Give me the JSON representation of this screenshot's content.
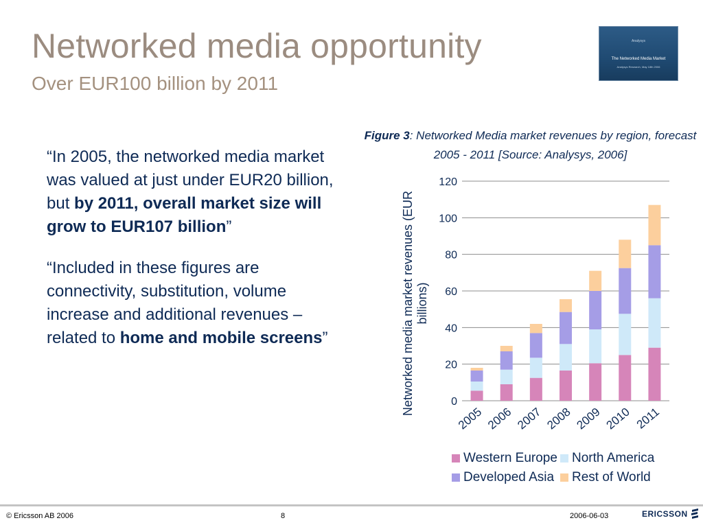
{
  "header": {
    "title": "Networked media opportunity",
    "subtitle": "Over EUR100 billion by 2011"
  },
  "thumbnail": {
    "logo": "Analysys",
    "title": "The Networked Media Market",
    "line": "Analysys Research, May 18th 2006"
  },
  "bullets": [
    {
      "pre": "“In 2005, the networked media market was valued at just under EUR20 billion, but ",
      "bold": "by 2011, overall market size will grow to EUR107 billion",
      "post": "”"
    },
    {
      "pre": "“Included in these figures are connectivity, substitution, volume increase and additional revenues – related to ",
      "bold": "home and mobile screens",
      "post": "”"
    }
  ],
  "caption": {
    "label": "Figure 3",
    "text": ": Networked Media market revenues by region, forecast 2005 - 2011 [Source: Analysys, 2006]"
  },
  "chart_data": {
    "type": "bar",
    "stacked": true,
    "categories": [
      "2005",
      "2006",
      "2007",
      "2008",
      "2009",
      "2010",
      "2011"
    ],
    "series": [
      {
        "name": "Western Europe",
        "color": "#d685b9",
        "values": [
          5.5,
          9,
          12.5,
          16.5,
          20.5,
          25,
          29
        ]
      },
      {
        "name": "North America",
        "color": "#cfe9f9",
        "values": [
          5,
          8,
          11,
          14.5,
          18.5,
          22.5,
          27
        ]
      },
      {
        "name": "Developed Asia",
        "color": "#a59de6",
        "values": [
          6,
          10,
          13.5,
          17.5,
          21,
          25,
          29
        ]
      },
      {
        "name": "Rest of World",
        "color": "#fccf9d",
        "values": [
          1.5,
          3,
          5,
          7,
          11,
          15.5,
          22
        ]
      }
    ],
    "ylabel": "Networked media market revenues (EUR billions)",
    "yticks": [
      0,
      20,
      40,
      60,
      80,
      100,
      120
    ],
    "ylim": [
      0,
      120
    ],
    "grid": true,
    "legend_position": "bottom"
  },
  "footer": {
    "copyright": "© Ericsson AB 2006",
    "page": "8",
    "date": "2006-06-03",
    "brand": "ERICSSON"
  }
}
